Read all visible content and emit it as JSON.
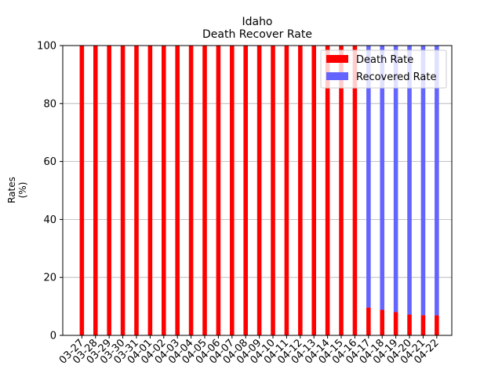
{
  "chart_data": {
    "type": "bar",
    "stacked": true,
    "title": "Idaho",
    "subtitle": "Death Recover Rate",
    "xlabel": "",
    "ylabel": "Rates\n(%)",
    "ylim": [
      0,
      100
    ],
    "yticks": [
      0,
      20,
      40,
      60,
      80,
      100
    ],
    "grid": "y",
    "legend_position": "top-right",
    "categories": [
      "03-27",
      "03-28",
      "03-29",
      "03-30",
      "03-31",
      "04-01",
      "04-02",
      "04-03",
      "04-04",
      "04-05",
      "04-06",
      "04-07",
      "04-08",
      "04-09",
      "04-10",
      "04-11",
      "04-12",
      "04-13",
      "04-14",
      "04-15",
      "04-16",
      "04-17",
      "04-18",
      "04-19",
      "04-20",
      "04-21",
      "04-22"
    ],
    "series": [
      {
        "name": "Death Rate",
        "color": "#ff0000",
        "values": [
          100,
          100,
          100,
          100,
          100,
          100,
          100,
          100,
          100,
          100,
          100,
          100,
          100,
          100,
          100,
          100,
          100,
          100,
          100,
          100,
          100,
          9.6,
          8.8,
          8.0,
          7.2,
          7.0,
          6.9
        ]
      },
      {
        "name": "Recovered Rate",
        "color": "#6464ff",
        "values": [
          0,
          0,
          0,
          0,
          0,
          0,
          0,
          0,
          0,
          0,
          0,
          0,
          0,
          0,
          0,
          0,
          0,
          0,
          0,
          0,
          0,
          90.4,
          91.2,
          92.0,
          92.8,
          93.0,
          93.1
        ]
      }
    ]
  }
}
